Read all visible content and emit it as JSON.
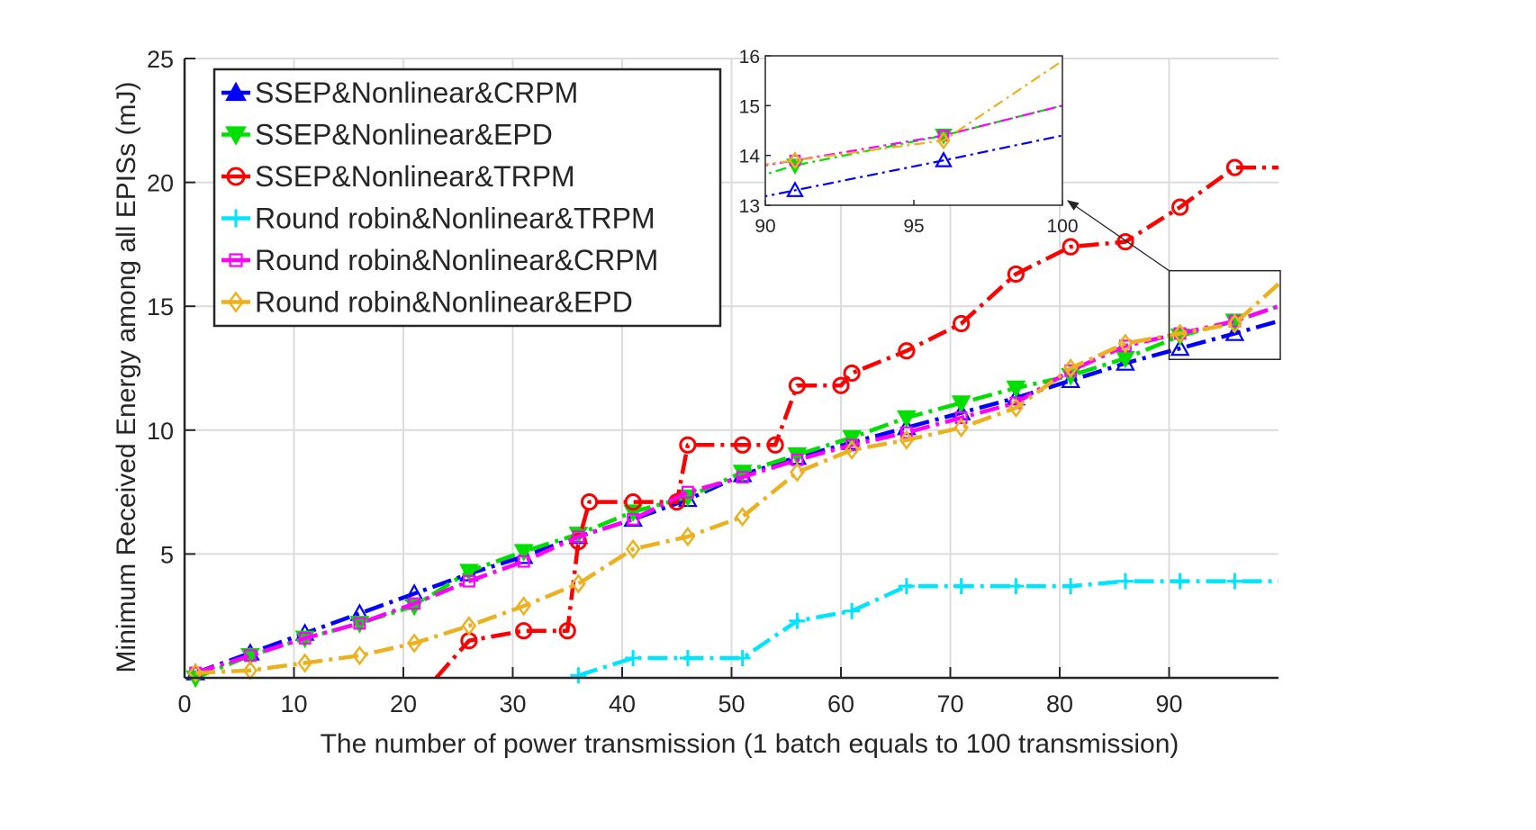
{
  "chart_data": {
    "type": "line",
    "xlabel": "The number of power transmission (1 batch equals to 100 transmission)",
    "ylabel": "Minimum Received Energy among all EPISs (mJ)",
    "xlim": [
      0,
      100
    ],
    "ylim": [
      0,
      25
    ],
    "xticks": [
      0,
      10,
      20,
      30,
      40,
      50,
      60,
      70,
      80,
      90
    ],
    "yticks": [
      5,
      10,
      15,
      20,
      25
    ],
    "grid": true,
    "legend_position": "top-left",
    "series": [
      {
        "name": "SSEP&Nonlinear&CRPM",
        "color": "#0000FF",
        "marker": "triangle-up",
        "dash": "dashdot",
        "x": [
          1,
          6,
          11,
          16,
          21,
          26,
          31,
          36,
          41,
          46,
          51,
          56,
          61,
          66,
          71,
          76,
          81,
          86,
          91,
          96,
          100
        ],
        "y": [
          0.2,
          1.0,
          1.8,
          2.6,
          3.4,
          4.2,
          4.9,
          5.7,
          6.4,
          7.2,
          8.2,
          8.9,
          9.5,
          10.1,
          10.7,
          11.3,
          12.0,
          12.7,
          13.3,
          13.9,
          14.4
        ]
      },
      {
        "name": "SSEP&Nonlinear&EPD",
        "color": "#00E000",
        "marker": "triangle-down",
        "dash": "dashdot",
        "x": [
          1,
          6,
          11,
          16,
          21,
          26,
          31,
          36,
          41,
          46,
          51,
          56,
          61,
          66,
          71,
          76,
          81,
          86,
          91,
          96,
          100
        ],
        "y": [
          0.0,
          0.9,
          1.6,
          2.2,
          2.9,
          4.3,
          5.1,
          5.8,
          6.7,
          7.3,
          8.3,
          9.0,
          9.7,
          10.5,
          11.1,
          11.7,
          12.2,
          12.9,
          13.8,
          14.4,
          15.0
        ]
      },
      {
        "name": "SSEP&Nonlinear&TRPM",
        "color": "#FF0000",
        "marker": "circle",
        "dash": "dashdot",
        "x": [
          23,
          26,
          31,
          35,
          36,
          37,
          41,
          45,
          46,
          51,
          54,
          56,
          60,
          61,
          66,
          71,
          76,
          81,
          86,
          91,
          96,
          100
        ],
        "y": [
          0.0,
          1.5,
          1.9,
          1.9,
          5.5,
          7.1,
          7.1,
          7.1,
          9.4,
          9.4,
          9.4,
          11.8,
          11.8,
          12.3,
          13.2,
          14.3,
          16.3,
          17.4,
          17.6,
          19.0,
          20.6,
          20.6
        ]
      },
      {
        "name": "Round robin&Nonlinear&TRPM",
        "color": "#00E5FF",
        "marker": "plus",
        "dash": "dashdot",
        "x": [
          36,
          41,
          46,
          51,
          56,
          61,
          66,
          71,
          76,
          81,
          86,
          91,
          96,
          100
        ],
        "y": [
          0.1,
          0.8,
          0.8,
          0.8,
          2.3,
          2.7,
          3.7,
          3.7,
          3.7,
          3.7,
          3.9,
          3.9,
          3.9,
          3.9
        ]
      },
      {
        "name": "Round robin&Nonlinear&CRPM",
        "color": "#FF00FF",
        "marker": "square",
        "dash": "dashdot",
        "x": [
          1,
          6,
          11,
          16,
          21,
          26,
          31,
          36,
          41,
          46,
          51,
          56,
          61,
          66,
          71,
          76,
          81,
          86,
          91,
          96,
          100
        ],
        "y": [
          0.2,
          0.9,
          1.6,
          2.2,
          3.0,
          3.9,
          4.7,
          5.7,
          6.4,
          7.5,
          8.1,
          8.8,
          9.4,
          9.9,
          10.5,
          11.1,
          12.4,
          13.4,
          13.9,
          14.4,
          15.0
        ]
      },
      {
        "name": "Round robin&Nonlinear&EPD",
        "color": "#EDB120",
        "marker": "diamond",
        "dash": "dashdot",
        "x": [
          1,
          6,
          11,
          16,
          21,
          26,
          31,
          36,
          41,
          46,
          51,
          56,
          61,
          66,
          71,
          76,
          81,
          86,
          91,
          96,
          100
        ],
        "y": [
          0.2,
          0.3,
          0.6,
          0.9,
          1.4,
          2.1,
          2.9,
          3.8,
          5.2,
          5.7,
          6.5,
          8.3,
          9.2,
          9.6,
          10.1,
          10.9,
          12.5,
          13.5,
          13.9,
          14.3,
          15.9
        ]
      }
    ],
    "inset": {
      "xlim": [
        90,
        100
      ],
      "ylim": [
        13,
        16
      ],
      "xticks": [
        90,
        95,
        100
      ],
      "yticks": [
        13,
        14,
        15,
        16
      ]
    }
  }
}
